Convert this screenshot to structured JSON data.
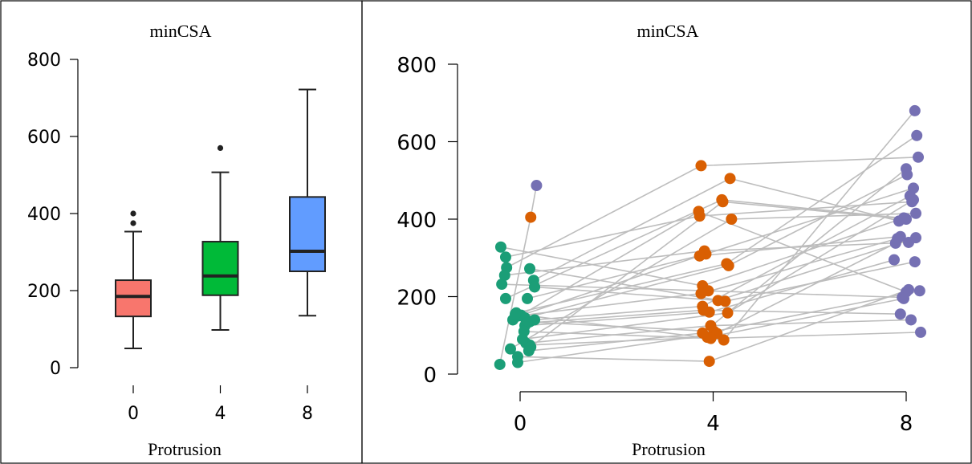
{
  "chart_data": [
    {
      "type": "box",
      "title": "minCSA",
      "xlabel": "Protrusion",
      "ylabel": "",
      "categories": [
        "0",
        "4",
        "8"
      ],
      "ylim": [
        0,
        800
      ],
      "yticks": [
        0,
        200,
        400,
        600,
        800
      ],
      "colors": [
        "#f8766d",
        "#00ba38",
        "#619cff"
      ],
      "boxes": [
        {
          "category": "0",
          "whisker_low": 50,
          "q1": 133,
          "median": 185,
          "q3": 227,
          "whisker_high": 353,
          "outliers": [
            375,
            400
          ]
        },
        {
          "category": "4",
          "whisker_low": 98,
          "q1": 188,
          "median": 238,
          "q3": 327,
          "whisker_high": 507,
          "outliers": [
            570
          ]
        },
        {
          "category": "8",
          "whisker_low": 135,
          "q1": 250,
          "median": 302,
          "q3": 443,
          "whisker_high": 722,
          "outliers": []
        }
      ]
    },
    {
      "type": "scatter",
      "title": "minCSA",
      "xlabel": "Protrusion",
      "ylabel": "",
      "ylim": [
        0,
        800
      ],
      "yticks": [
        0,
        200,
        400,
        600,
        800
      ],
      "xticks": [
        0,
        4,
        8
      ],
      "colors": [
        "#1b9e77",
        "#d95f02",
        "#7570b3"
      ],
      "line_color": "#bdbdbd",
      "series": [
        {
          "x": [
            -0.42,
            0.22,
            0.34
          ],
          "y": [
            25,
            405,
            487
          ]
        },
        {
          "x": [
            -0.4,
            3.78,
            7.95
          ],
          "y": [
            328,
            228,
            403
          ]
        },
        {
          "x": [
            -0.3,
            3.72,
            8.12
          ],
          "y": [
            302,
            408,
            445
          ]
        },
        {
          "x": [
            -0.28,
            3.75,
            8.25
          ],
          "y": [
            275,
            538,
            560
          ]
        },
        {
          "x": [
            -0.32,
            3.82,
            8.05
          ],
          "y": [
            255,
            318,
            340
          ]
        },
        {
          "x": [
            -0.38,
            3.9,
            7.92
          ],
          "y": [
            232,
            215,
            198
          ]
        },
        {
          "x": [
            -0.3,
            4.18,
            7.98
          ],
          "y": [
            195,
            450,
            402
          ]
        },
        {
          "x": [
            0.2,
            4.25,
            8.18
          ],
          "y": [
            272,
            188,
            290
          ]
        },
        {
          "x": [
            0.28,
            4.35,
            7.85
          ],
          "y": [
            242,
            505,
            395
          ]
        },
        {
          "x": [
            0.3,
            4.1,
            8.2
          ],
          "y": [
            225,
            190,
            352
          ]
        },
        {
          "x": [
            0.15,
            3.85,
            8.15
          ],
          "y": [
            195,
            310,
            480
          ]
        },
        {
          "x": [
            -0.15,
            3.7,
            8.0
          ],
          "y": [
            140,
            420,
            212
          ]
        },
        {
          "x": [
            -0.08,
            4.28,
            8.22
          ],
          "y": [
            158,
            285,
            616
          ]
        },
        {
          "x": [
            0.02,
            3.72,
            7.88
          ],
          "y": [
            152,
            305,
            355
          ]
        },
        {
          "x": [
            0.1,
            4.32,
            8.02
          ],
          "y": [
            145,
            280,
            515
          ]
        },
        {
          "x": [
            0.2,
            4.02,
            8.28
          ],
          "y": [
            135,
            110,
            215
          ]
        },
        {
          "x": [
            0.3,
            3.78,
            8.08
          ],
          "y": [
            140,
            175,
            460
          ]
        },
        {
          "x": [
            0.1,
            3.92,
            7.75
          ],
          "y": [
            125,
            160,
            295
          ]
        },
        {
          "x": [
            0.15,
            3.8,
            7.88
          ],
          "y": [
            132,
            165,
            155
          ]
        },
        {
          "x": [
            -0.2,
            4.38,
            8.2
          ],
          "y": [
            65,
            400,
            415
          ]
        },
        {
          "x": [
            0.12,
            3.95,
            8.1
          ],
          "y": [
            80,
            125,
            140
          ]
        },
        {
          "x": [
            0.2,
            3.88,
            7.95
          ],
          "y": [
            75,
            95,
            195
          ]
        },
        {
          "x": [
            -0.05,
            3.92,
            8.05
          ],
          "y": [
            45,
            33,
            218
          ]
        },
        {
          "x": [
            -0.05,
            4.08,
            7.78
          ],
          "y": [
            30,
            105,
            338
          ]
        },
        {
          "x": [
            0.08,
            3.95,
            8.3
          ],
          "y": [
            110,
            92,
            108
          ]
        },
        {
          "x": [
            0.22,
            4.2,
            8.0
          ],
          "y": [
            70,
            445,
            400
          ]
        },
        {
          "x": [
            -0.05,
            3.75,
            7.82
          ],
          "y": [
            150,
            208,
            350
          ]
        },
        {
          "x": [
            0.05,
            4.3,
            8.15
          ],
          "y": [
            90,
            158,
            450
          ]
        },
        {
          "x": [
            0.18,
            3.78,
            8.0
          ],
          "y": [
            60,
            106,
            530
          ]
        },
        {
          "x": [
            -0.1,
            4.22,
            8.18
          ],
          "y": [
            155,
            88,
            680
          ]
        }
      ]
    }
  ]
}
